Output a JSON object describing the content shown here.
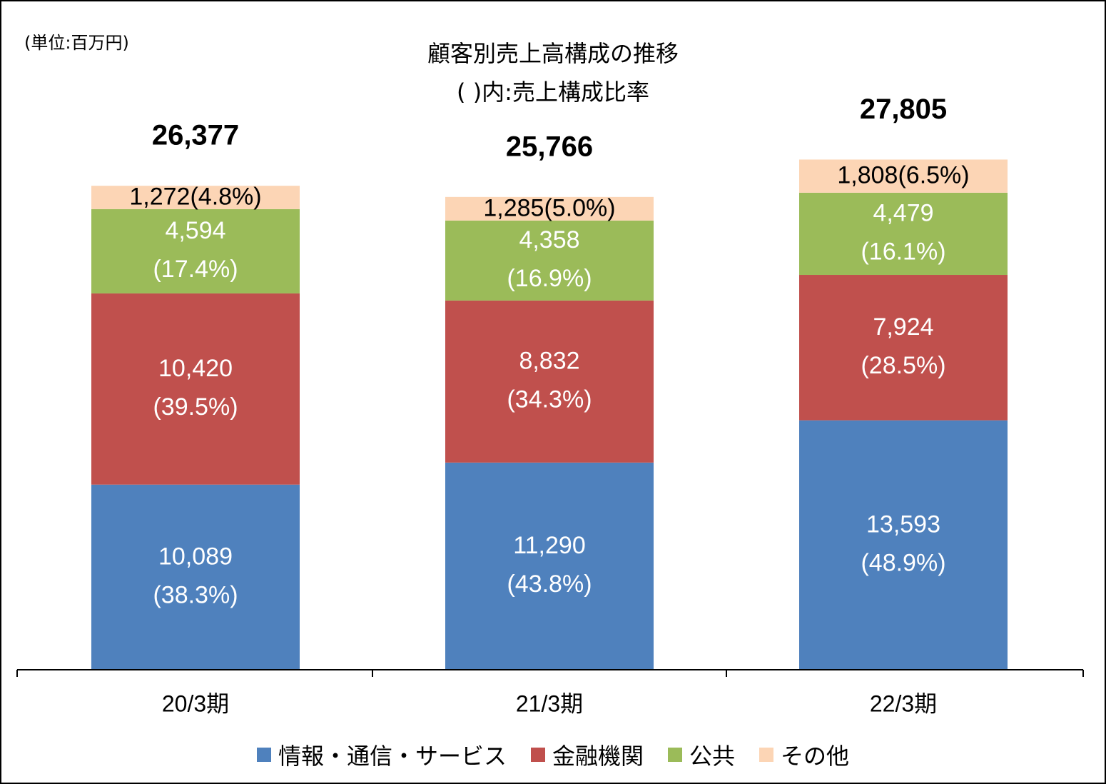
{
  "unit_label": "(単位:百万円)",
  "title_line1": "顧客別売上高構成の推移",
  "title_line2": "( )内:売上構成比率",
  "chart_data": {
    "type": "bar",
    "stacked": true,
    "title": "顧客別売上高構成の推移",
    "categories": [
      "20/3期",
      "21/3期",
      "22/3期"
    ],
    "totals": [
      26377,
      25766,
      27805
    ],
    "total_labels": [
      "26,377",
      "25,766",
      "27,805"
    ],
    "series": [
      {
        "name": "情報・通信・サービス",
        "color": "#4F81BD",
        "values": [
          10089,
          11290,
          13593
        ],
        "value_labels": [
          "10,089",
          "11,290",
          "13,593"
        ],
        "share_labels": [
          "(38.3%)",
          "(43.8%)",
          "(48.9%)"
        ]
      },
      {
        "name": "金融機関",
        "color": "#C0504D",
        "values": [
          10420,
          8832,
          7924
        ],
        "value_labels": [
          "10,420",
          "8,832",
          "7,924"
        ],
        "share_labels": [
          "(39.5%)",
          "(34.3%)",
          "(28.5%)"
        ]
      },
      {
        "name": "公共",
        "color": "#9BBB59",
        "values": [
          4594,
          4358,
          4479
        ],
        "value_labels": [
          "4,594",
          "4,358",
          "4,479"
        ],
        "share_labels": [
          "(17.4%)",
          "(16.9%)",
          "(16.1%)"
        ]
      },
      {
        "name": "その他",
        "color": "#FCD5B5",
        "values": [
          1272,
          1285,
          1808
        ],
        "value_labels": [
          "1,272",
          "1,285",
          "1,808"
        ],
        "share_labels": [
          "(4.8%)",
          "(5.0%)",
          "(6.5%)"
        ]
      }
    ],
    "label_colors": {
      "inside": "#FFFFFF",
      "small_segment": "#000000",
      "total": "#000000"
    },
    "grid": false,
    "legend_position": "bottom"
  }
}
